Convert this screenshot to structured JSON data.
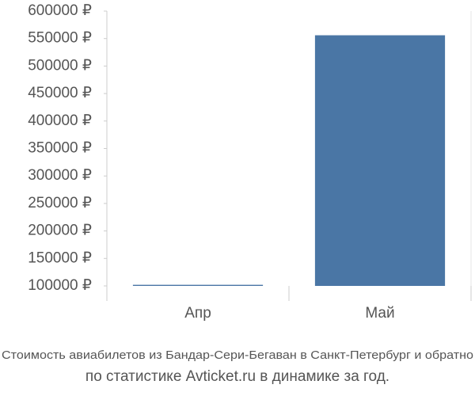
{
  "chart_data": {
    "type": "bar",
    "title": "Стоимость авиабилетов из Бандар-Сери-Бегаван в Санкт-Петербург и обратно",
    "subtitle": "по статистике Avticket.ru в динамике за год.",
    "categories": [
      "Апр",
      "Май"
    ],
    "values": [
      102000,
      556000
    ],
    "color": "#4a76a5",
    "ylim": [
      100000,
      600000
    ],
    "yticks": [
      {
        "value": 100000,
        "label": "100000 ₽"
      },
      {
        "value": 150000,
        "label": "150000 ₽"
      },
      {
        "value": 200000,
        "label": "200000 ₽"
      },
      {
        "value": 250000,
        "label": "250000 ₽"
      },
      {
        "value": 300000,
        "label": "300000 ₽"
      },
      {
        "value": 350000,
        "label": "350000 ₽"
      },
      {
        "value": 400000,
        "label": "400000 ₽"
      },
      {
        "value": 450000,
        "label": "450000 ₽"
      },
      {
        "value": 500000,
        "label": "500000 ₽"
      },
      {
        "value": 550000,
        "label": "550000 ₽"
      },
      {
        "value": 600000,
        "label": "600000 ₽"
      }
    ],
    "grid": false
  }
}
